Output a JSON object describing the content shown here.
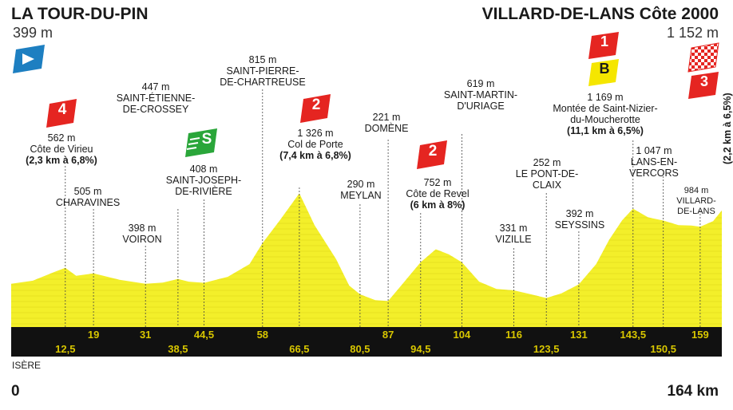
{
  "header": {
    "start_name": "LA TOUR-DU-PIN",
    "start_alt": "399 m",
    "finish_name": "VILLARD-DE-LANS Côte 2000",
    "finish_alt": "1 152 m"
  },
  "footer": {
    "region": "ISÈRE",
    "start_km": "0",
    "end_km": "164 km"
  },
  "badges": {
    "climb4": "4",
    "climb2a": "2",
    "climb2b": "2",
    "climb1": "1",
    "bonus": "B",
    "final3": "3",
    "sprint": "S"
  },
  "labels": {
    "virieu": {
      "alt": "562 m",
      "name": "Côte de Virieu",
      "detail": "(2,3 km à 6,8%)"
    },
    "charavines": {
      "alt": "505 m",
      "name": "CHARAVINES"
    },
    "voiron": {
      "alt": "398 m",
      "name": "VOIRON"
    },
    "crossey": {
      "alt": "447 m",
      "name1": "SAINT-ÉTIENNE-",
      "name2": "DE-CROSSEY"
    },
    "riviere": {
      "alt": "408 m",
      "name1": "SAINT-JOSEPH-",
      "name2": "DE-RIVIÈRE"
    },
    "chartreuse": {
      "alt": "815 m",
      "name1": "SAINT-PIERRE-",
      "name2": "DE-CHARTREUSE"
    },
    "porte": {
      "alt": "1 326 m",
      "name": "Col de Porte",
      "detail": "(7,4 km à 6,8%)"
    },
    "meylan": {
      "alt": "290 m",
      "name": "MEYLAN"
    },
    "domene": {
      "alt": "221 m",
      "name": "DOMÈNE"
    },
    "revel": {
      "alt": "752 m",
      "name": "Côte de Revel",
      "detail": "(6 km à 8%)"
    },
    "uriage": {
      "alt": "619 m",
      "name1": "SAINT-MARTIN-",
      "name2": "D'URIAGE"
    },
    "vizille": {
      "alt": "331 m",
      "name": "VIZILLE"
    },
    "pontdeclaix": {
      "alt": "252 m",
      "name1": "LE PONT-DE-",
      "name2": "CLAIX"
    },
    "seyssins": {
      "alt": "392 m",
      "name": "SEYSSINS"
    },
    "nizier": {
      "alt": "1 169 m",
      "name1": "Montée de Saint-Nizier-",
      "name2": "du-Moucherotte",
      "detail": "(11,1 km à 6,5%)"
    },
    "lans": {
      "alt": "1 047 m",
      "name1": "LANS-EN-",
      "name2": "VERCORS"
    },
    "villard": {
      "alt": "984 m",
      "name1": "VILLARD-",
      "name2": "DE-LANS"
    },
    "final_climb": "(2,2 km à 6,5%)"
  },
  "colors": {
    "profile_fill": "#f3ef2a",
    "band": "#111111",
    "km_text": "#d8c600",
    "climb_red": "#e52521",
    "sprint_green": "#2aa63a",
    "bonus_yellow": "#f5e600",
    "start_blue": "#1d7fc1"
  },
  "icons": {
    "start": "start-flag-icon",
    "finish": "checkered-finish-icon"
  },
  "chart_data": {
    "type": "area",
    "title": "",
    "xlabel": "",
    "ylabel": "",
    "xlim": [
      0,
      164
    ],
    "ylim": [
      0,
      1400
    ],
    "grid": false,
    "x": [
      0,
      5,
      10,
      12.5,
      15,
      19,
      25,
      31,
      35,
      38.5,
      41,
      44.5,
      50,
      55,
      58,
      62,
      66.5,
      70,
      75,
      78,
      80.5,
      84,
      87,
      90,
      94.5,
      98,
      101,
      104,
      108,
      112,
      116,
      120,
      123.5,
      127,
      131,
      135,
      138,
      141,
      143.5,
      147,
      150.5,
      154,
      157,
      159,
      162,
      164
    ],
    "y": [
      399,
      430,
      520,
      562,
      480,
      505,
      440,
      398,
      410,
      447,
      420,
      408,
      470,
      600,
      815,
      1050,
      1326,
      1000,
      650,
      380,
      290,
      230,
      221,
      380,
      620,
      752,
      700,
      619,
      420,
      345,
      331,
      290,
      252,
      300,
      392,
      600,
      850,
      1050,
      1169,
      1080,
      1047,
      1000,
      995,
      984,
      1040,
      1152
    ],
    "km_markers_top": [
      "19",
      "31",
      "44,5",
      "58",
      "87",
      "104",
      "116",
      "131",
      "143,5",
      "159"
    ],
    "km_markers_top_x": [
      19,
      31,
      44.5,
      58,
      87,
      104,
      116,
      131,
      143.5,
      159
    ],
    "km_markers_bottom": [
      "12,5",
      "38,5",
      "66,5",
      "80,5",
      "94,5",
      "123,5",
      "150,5"
    ],
    "km_markers_bottom_x": [
      12.5,
      38.5,
      66.5,
      80.5,
      94.5,
      123.5,
      150.5
    ]
  }
}
